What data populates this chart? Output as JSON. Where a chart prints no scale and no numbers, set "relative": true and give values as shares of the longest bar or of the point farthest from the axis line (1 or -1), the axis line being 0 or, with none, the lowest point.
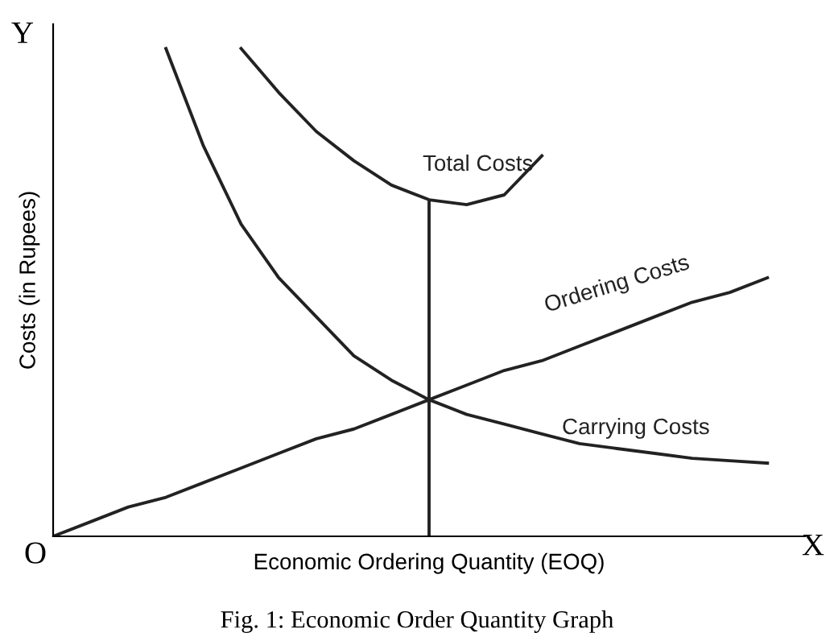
{
  "chart_data": {
    "type": "line",
    "relative": true,
    "xlabel": "Economic Ordering Quantity (EOQ)",
    "ylabel": "Costs (in Rupees)",
    "categories": [
      null,
      null,
      null,
      null,
      null,
      null,
      null,
      null,
      null,
      null,
      null,
      null,
      null,
      null,
      null,
      null,
      null,
      null,
      null,
      null
    ],
    "series": [
      {
        "name": "Total Costs",
        "color": "#222222",
        "values": [
          null,
          null,
          null,
          null,
          null,
          1.0,
          0.91,
          0.83,
          0.77,
          0.72,
          0.69,
          0.68,
          0.7,
          0.78,
          null,
          null,
          null,
          null,
          null,
          null
        ]
      },
      {
        "name": "Ordering Costs",
        "color": "#222222",
        "values": [
          0,
          0.03,
          0.06,
          0.08,
          0.11,
          0.14,
          0.17,
          0.2,
          0.22,
          0.25,
          0.28,
          0.31,
          0.34,
          0.36,
          0.39,
          0.42,
          0.45,
          0.48,
          0.5,
          0.53
        ]
      },
      {
        "name": "Carrying Costs",
        "color": "#222222",
        "values": [
          null,
          null,
          null,
          1.0,
          0.8,
          0.64,
          0.53,
          0.45,
          0.37,
          0.32,
          0.28,
          0.25,
          0.23,
          0.21,
          0.19,
          0.18,
          0.17,
          0.16,
          0.155,
          0.15
        ]
      }
    ],
    "annotations": [
      "Y",
      "X",
      "O",
      "Fig. 1: Economic Order Quantity Graph"
    ],
    "legend": false,
    "grid": false,
    "marker": "none",
    "line_style": "solid"
  }
}
